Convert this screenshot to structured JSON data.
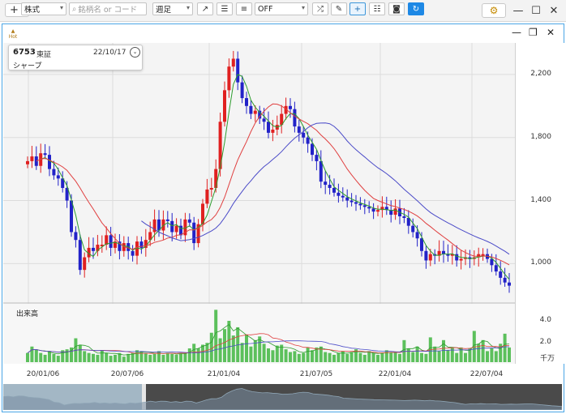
{
  "topbar": {
    "add_label": "+",
    "settings_icon": "gear-icon",
    "minimize_icon": "minimize-icon",
    "maximize_icon": "maximize-icon",
    "close_icon": "close-icon"
  },
  "toolbar": {
    "hot_label": "Hot",
    "market_select": "株式",
    "search_placeholder": "銘柄名 or コード",
    "period_select": "週足",
    "indicator_select": "OFF",
    "panel_icons": [
      "maximize-icon",
      "restore-icon",
      "close-icon"
    ]
  },
  "stock": {
    "code": "6753",
    "exchange": "東証",
    "date": "22/10/17",
    "name": "シャープ"
  },
  "volume": {
    "label": "出来高",
    "ticks": [
      "4.0",
      "2.0"
    ],
    "unit": "千万"
  },
  "colors": {
    "up": "#e02020",
    "down": "#2222c8",
    "ma_short": "#2e9c2e",
    "ma_mid": "#e04040",
    "ma_long": "#4b4bc8",
    "volume": "#5cc05c",
    "panel_border": "#4aa6e6"
  },
  "chart_data": {
    "type": "candlestick",
    "x_ticks": [
      "20/01/06",
      "20/07/06",
      "21/01/04",
      "21/07/05",
      "22/01/04",
      "22/07/04"
    ],
    "y_ticks": [
      2200,
      1800,
      1400,
      1000
    ],
    "ylim": [
      750,
      2400
    ],
    "closes": [
      1650,
      1680,
      1620,
      1700,
      1690,
      1600,
      1560,
      1540,
      1480,
      1400,
      1200,
      1150,
      960,
      1040,
      1100,
      1080,
      1120,
      1120,
      1180,
      1100,
      1140,
      1080,
      1130,
      1080,
      1050,
      1140,
      1100,
      1150,
      1200,
      1280,
      1210,
      1280,
      1270,
      1200,
      1240,
      1180,
      1280,
      1260,
      1130,
      1250,
      1380,
      1470,
      1480,
      1600,
      1900,
      2100,
      2250,
      2300,
      2150,
      2050,
      2000,
      1950,
      1970,
      1920,
      1900,
      1830,
      1850,
      1880,
      1950,
      2000,
      1980,
      1870,
      1830,
      1800,
      1760,
      1690,
      1650,
      1520,
      1500,
      1480,
      1450,
      1430,
      1420,
      1400,
      1390,
      1380,
      1370,
      1360,
      1350,
      1330,
      1340,
      1360,
      1340,
      1310,
      1350,
      1300,
      1290,
      1240,
      1200,
      1160,
      1080,
      1020,
      1060,
      1050,
      1080,
      1060,
      1050,
      1060,
      1020,
      1030,
      1040,
      1030,
      1040,
      1060,
      1060,
      1030,
      990,
      950,
      910,
      880,
      860
    ],
    "volumes": [
      1.0,
      1.7,
      1.4,
      1.0,
      0.8,
      1.2,
      0.9,
      0.7,
      1.3,
      1.4,
      1.6,
      2.6,
      1.9,
      1.2,
      1.0,
      0.9,
      0.8,
      1.3,
      1.0,
      0.7,
      0.8,
      1.0,
      0.6,
      0.9,
      1.0,
      1.3,
      1.2,
      1.0,
      0.8,
      0.9,
      1.2,
      0.8,
      1.0,
      0.9,
      0.8,
      1.0,
      1.0,
      1.5,
      2.0,
      1.5,
      1.9,
      2.1,
      3.2,
      5.7,
      2.6,
      3.6,
      4.5,
      2.9,
      3.8,
      2.1,
      3.0,
      1.7,
      2.4,
      2.8,
      2.0,
      1.5,
      1.3,
      1.8,
      1.9,
      1.4,
      1.1,
      1.2,
      0.9,
      1.0,
      1.6,
      1.3,
      1.6,
      1.7,
      1.1,
      1.0,
      0.8,
      1.0,
      1.2,
      0.9,
      1.1,
      1.4,
      1.0,
      0.8,
      1.2,
      1.0,
      0.8,
      1.0,
      1.3,
      1.1,
      1.1,
      0.9,
      2.4,
      1.5,
      1.1,
      1.7,
      1.0,
      0.9,
      2.7,
      1.7,
      1.2,
      2.4,
      1.3,
      1.6,
      1.0,
      1.6,
      1.0,
      1.5,
      3.4,
      2.0,
      2.4,
      1.2,
      1.5,
      1.2,
      2.0,
      3.1,
      1.6
    ]
  }
}
